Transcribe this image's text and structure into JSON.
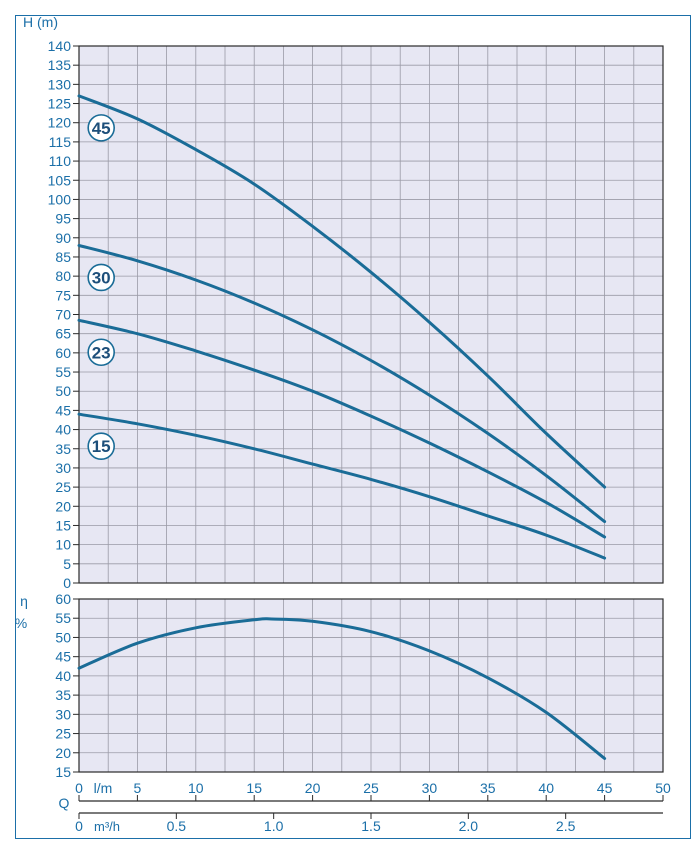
{
  "colors": {
    "axis_text": "#1b6fa8",
    "curve": "#1a6c97",
    "plot_bg": "#e7e7f3",
    "grid": "#9a9aa6",
    "border": "#1b6fa8"
  },
  "chart_data": [
    {
      "type": "line",
      "ylabel": "H (m)",
      "xlabel": "l/m",
      "xlim": [
        0,
        50
      ],
      "ylim": [
        0,
        140
      ],
      "x_ticks": [
        0,
        5,
        10,
        15,
        20,
        25,
        30,
        35,
        40,
        45,
        50
      ],
      "y_ticks": [
        0,
        5,
        10,
        15,
        20,
        25,
        30,
        35,
        40,
        45,
        50,
        55,
        60,
        65,
        70,
        75,
        80,
        85,
        90,
        95,
        100,
        105,
        110,
        115,
        120,
        125,
        130,
        135,
        140
      ],
      "grid": true,
      "series": [
        {
          "name": "45",
          "x": [
            0,
            5,
            10,
            15,
            20,
            25,
            30,
            35,
            40,
            45
          ],
          "y": [
            127,
            121,
            113,
            104,
            93,
            81,
            68,
            54,
            39,
            25
          ]
        },
        {
          "name": "30",
          "x": [
            0,
            5,
            10,
            15,
            20,
            25,
            30,
            35,
            40,
            45
          ],
          "y": [
            88,
            84,
            79,
            73,
            66,
            58,
            49,
            39,
            28,
            16
          ]
        },
        {
          "name": "23",
          "x": [
            0,
            5,
            10,
            15,
            20,
            25,
            30,
            35,
            40,
            45
          ],
          "y": [
            68.5,
            65,
            60.5,
            55.5,
            50,
            43.5,
            36.5,
            29,
            21,
            12
          ]
        },
        {
          "name": "15",
          "x": [
            0,
            5,
            10,
            15,
            20,
            25,
            30,
            35,
            40,
            45
          ],
          "y": [
            44,
            41.5,
            38.5,
            35,
            31,
            27,
            22.5,
            17.5,
            12.5,
            6.5
          ]
        }
      ]
    },
    {
      "type": "line",
      "ylabel": "η %",
      "xlim": [
        0,
        50
      ],
      "ylim": [
        15,
        60
      ],
      "y_ticks": [
        15,
        20,
        25,
        30,
        35,
        40,
        45,
        50,
        55,
        60
      ],
      "grid": true,
      "series": [
        {
          "x": [
            0,
            5,
            10,
            15,
            16.5,
            20,
            25,
            30,
            35,
            40,
            45
          ],
          "y": [
            42,
            48.5,
            52.5,
            54.6,
            54.8,
            54.2,
            51.5,
            46.5,
            39.5,
            30.5,
            18.5
          ]
        }
      ]
    }
  ],
  "q_axes": {
    "label": "Q",
    "lm_unit": "l/m",
    "lm_ticks": [
      "0",
      "5",
      "10",
      "15",
      "20",
      "25",
      "30",
      "35",
      "40",
      "45",
      "50"
    ],
    "m3h_unit": "m³/h",
    "m3h_ticks": [
      {
        "value": 0,
        "label": "0"
      },
      {
        "value": 0.5,
        "label": "0.5"
      },
      {
        "value": 1.0,
        "label": "1.0"
      },
      {
        "value": 1.5,
        "label": "1.5"
      },
      {
        "value": 2.0,
        "label": "2.0"
      },
      {
        "value": 2.5,
        "label": "2.5"
      }
    ]
  }
}
